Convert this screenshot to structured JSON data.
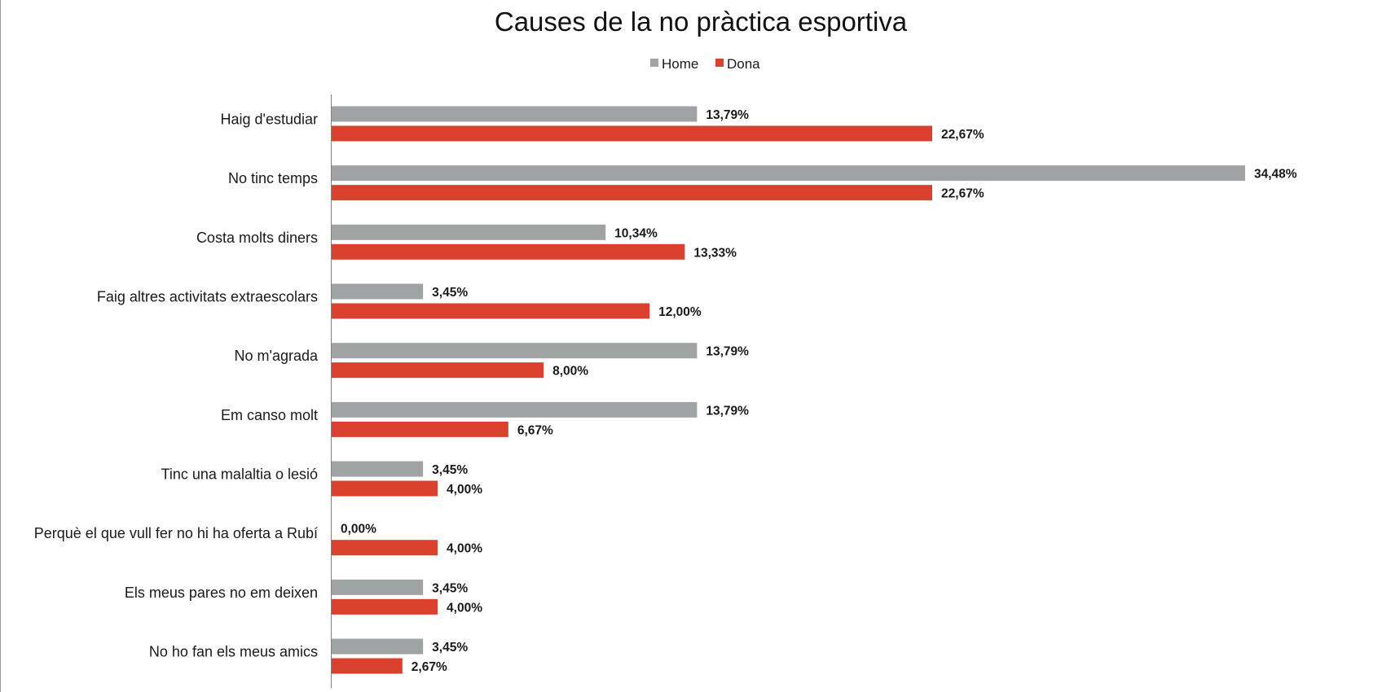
{
  "chart_data": {
    "type": "bar",
    "orientation": "horizontal",
    "title": "Causes de la no pràctica esportiva",
    "categories": [
      "Haig d'estudiar",
      "No tinc temps",
      "Costa molts diners",
      "Faig altres activitats extraescolars",
      "No m'agrada",
      "Em canso molt",
      "Tinc una malaltia o lesió",
      "Perquè el que vull fer no hi ha oferta a Rubí",
      "Els meus pares no em deixen",
      "No ho fan els meus amics"
    ],
    "series": [
      {
        "name": "Home",
        "color": "#a0a3a3",
        "values": [
          13.79,
          34.48,
          10.34,
          3.45,
          13.79,
          13.79,
          3.45,
          0.0,
          3.45,
          3.45
        ],
        "labels": [
          "13,79%",
          "34,48%",
          "10,34%",
          "3,45%",
          "13,79%",
          "13,79%",
          "3,45%",
          "0,00%",
          "3,45%",
          "3,45%"
        ]
      },
      {
        "name": "Dona",
        "color": "#d9402e",
        "values": [
          22.67,
          22.67,
          13.33,
          12.0,
          8.0,
          6.67,
          4.0,
          4.0,
          4.0,
          2.67
        ],
        "labels": [
          "22,67%",
          "22,67%",
          "13,33%",
          "12,00%",
          "8,00%",
          "6,67%",
          "4,00%",
          "4,00%",
          "4,00%",
          "2,67%"
        ]
      }
    ],
    "xlim": [
      0,
      35
    ],
    "grid": false,
    "legend_position": "top-center",
    "xlabel": "",
    "ylabel": ""
  }
}
